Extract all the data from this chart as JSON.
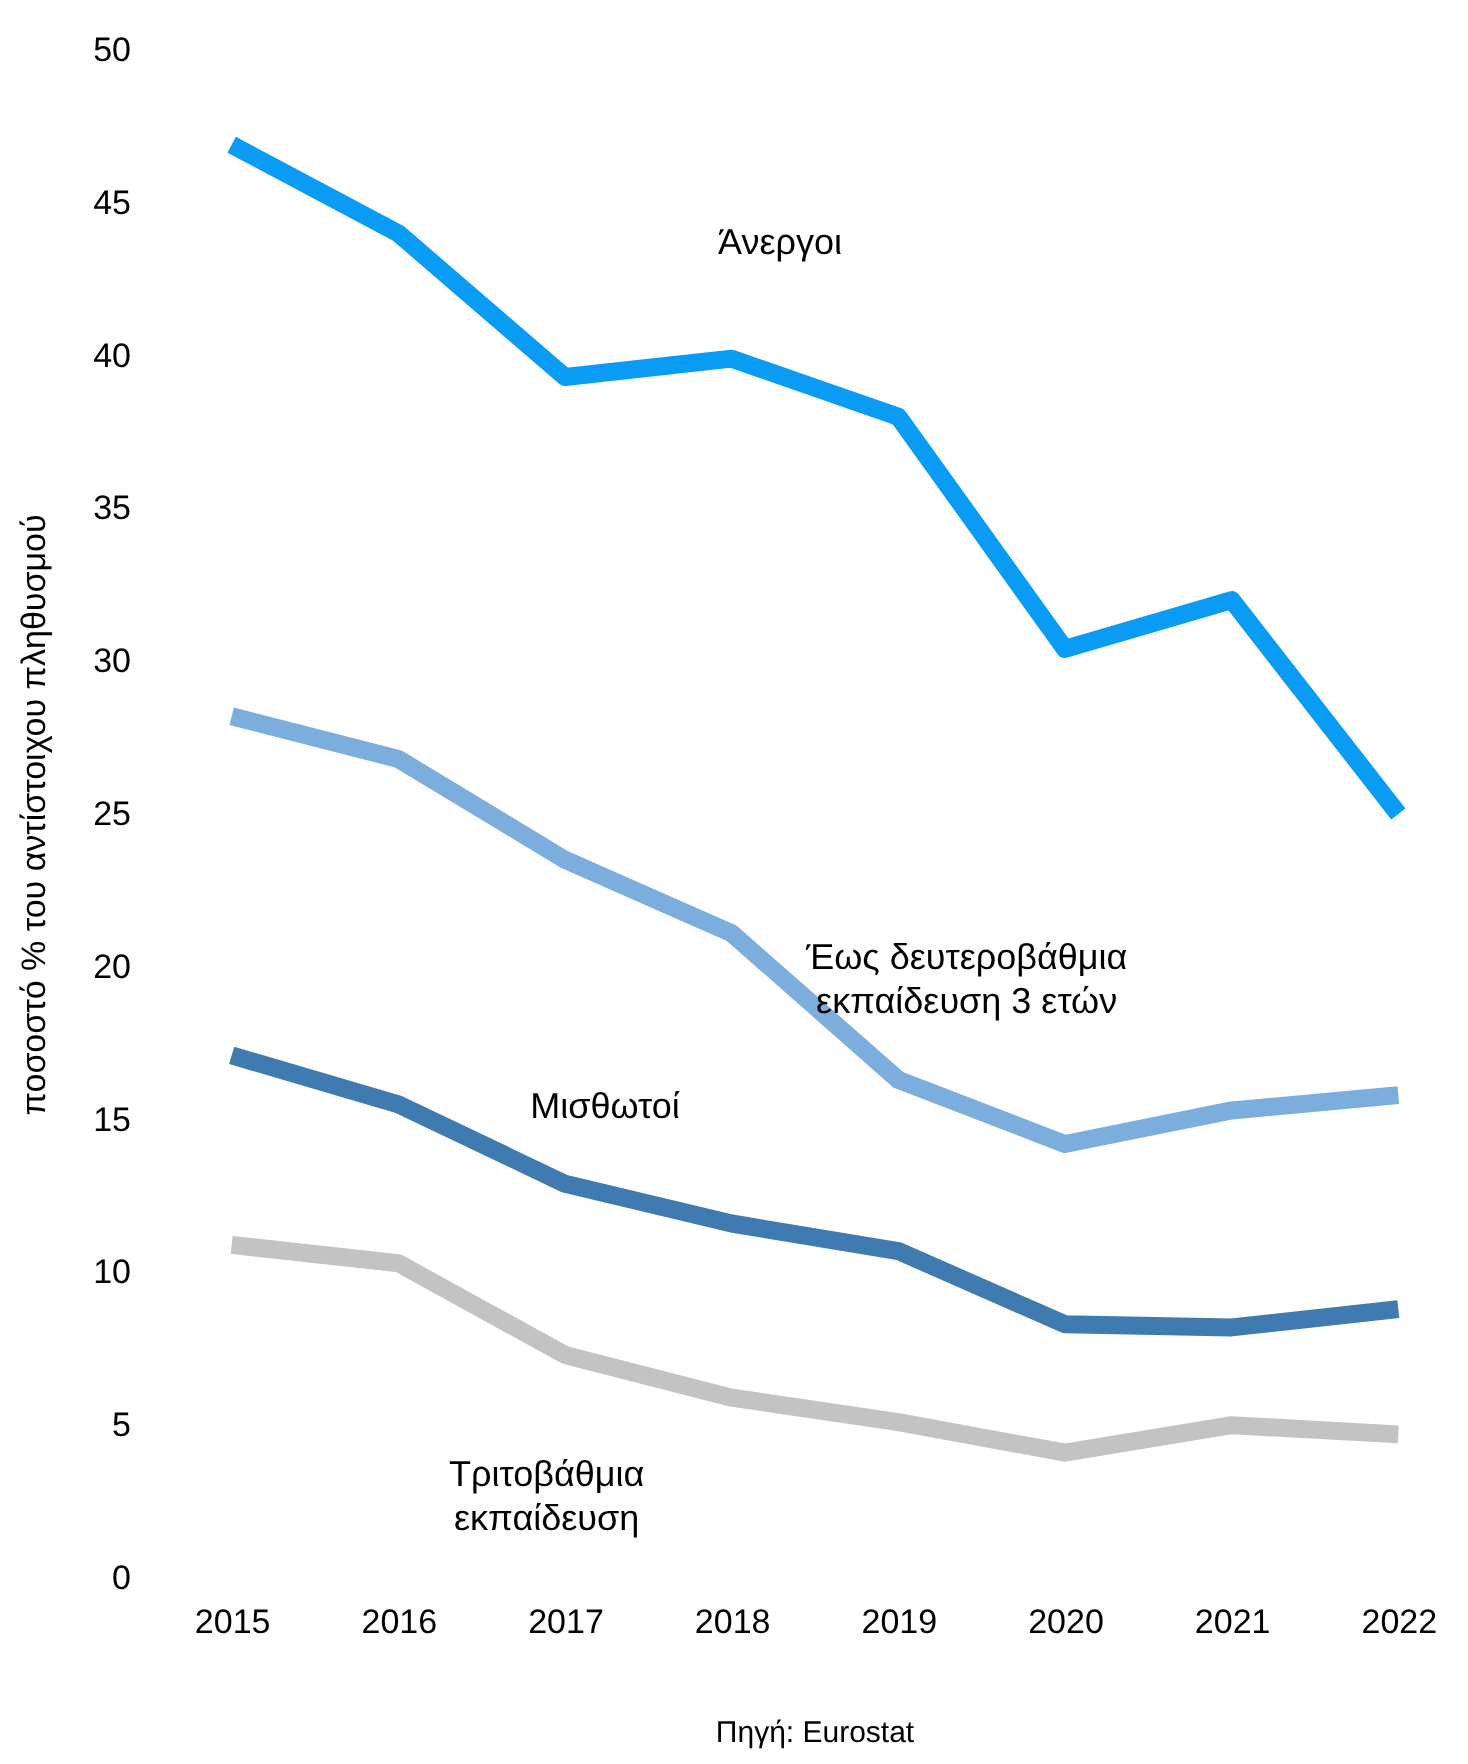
{
  "chart_data": {
    "type": "line",
    "ylabel": "ποσοστό % του αντίστοιχου πληθυσμού",
    "categories": [
      "2015",
      "2016",
      "2017",
      "2018",
      "2019",
      "2020",
      "2021",
      "2022"
    ],
    "ylim": [
      0,
      50
    ],
    "yticks": [
      0,
      5,
      10,
      15,
      20,
      25,
      30,
      35,
      40,
      45,
      50
    ],
    "annotations": [
      "Πηγή: Eurostat"
    ],
    "series": [
      {
        "name": "Άνεργοι",
        "color": "#0a9bf5",
        "values": [
          46.9,
          44.0,
          39.3,
          39.9,
          38.0,
          30.4,
          32.0,
          25.0
        ]
      },
      {
        "name": "Έως δευτεροβάθμια εκπαίδευση 3 ετών",
        "color": "#7baedc",
        "values": [
          28.2,
          26.8,
          23.5,
          21.1,
          16.3,
          14.2,
          15.3,
          15.8
        ]
      },
      {
        "name": "Μισθωτοί",
        "color": "#3f7bb0",
        "values": [
          17.1,
          15.5,
          12.9,
          11.6,
          10.7,
          8.3,
          8.2,
          8.8
        ]
      },
      {
        "name": "Τριτοβάθμια εκπαίδευση",
        "color": "#c3c3c3",
        "values": [
          10.9,
          10.3,
          7.3,
          5.9,
          5.1,
          4.1,
          5.0,
          4.7
        ]
      }
    ]
  }
}
